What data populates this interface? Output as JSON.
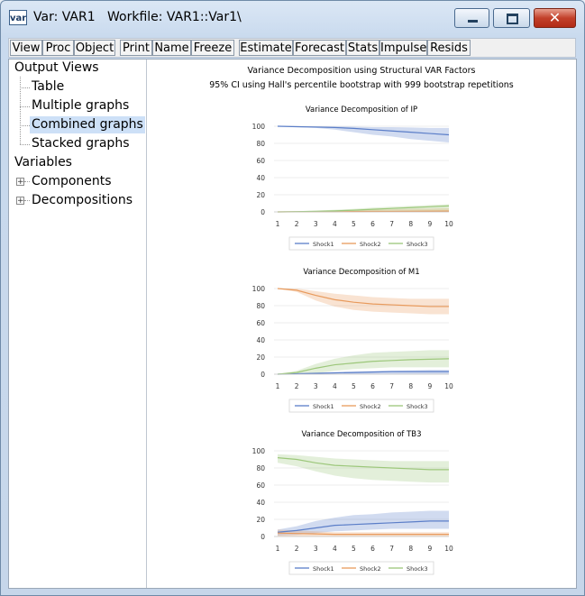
{
  "window": {
    "icon_label": "var",
    "title": "Var: VAR1   Workfile: VAR1::Var1\\",
    "close_glyph": "✕"
  },
  "toolbar": [
    "View",
    "Proc",
    "Object",
    "Print",
    "Name",
    "Freeze",
    "Estimate",
    "Forecast",
    "Stats",
    "Impulse",
    "Resids"
  ],
  "tree": {
    "output_views": "Output Views",
    "table": "Table",
    "multiple_graphs": "Multiple graphs",
    "combined_graphs": "Combined graphs",
    "stacked_graphs": "Stacked graphs",
    "variables": "Variables",
    "components": "Components",
    "decompositions": "Decompositions",
    "expand_glyph": "+"
  },
  "figure": {
    "title": "Variance Decomposition using Structural VAR Factors",
    "subtitle": "95% CI using Hall's percentile bootstrap with 999 bootstrap repetitions"
  },
  "colors": {
    "shock1": "#5b7ec8",
    "shock2": "#e89a5c",
    "shock3": "#9cc77a"
  },
  "chart_data": [
    {
      "type": "line",
      "title": "Variance Decomposition of IP",
      "x": [
        1,
        2,
        3,
        4,
        5,
        6,
        7,
        8,
        9,
        10
      ],
      "ylim": [
        0,
        100
      ],
      "yticks": [
        0,
        20,
        40,
        60,
        80,
        100
      ],
      "legend_placement": "bottom",
      "series": [
        {
          "name": "Shock1",
          "values": [
            100,
            99.5,
            99,
            98.5,
            97.5,
            96,
            94.5,
            93,
            91.5,
            90
          ],
          "lower": [
            100,
            99,
            98,
            96,
            93,
            90,
            88,
            85,
            83,
            81
          ],
          "upper": [
            100,
            100,
            100,
            100,
            99.5,
            99,
            99,
            98.5,
            98,
            98
          ]
        },
        {
          "name": "Shock2",
          "values": [
            0,
            0.1,
            0.2,
            0.3,
            0.4,
            0.5,
            0.6,
            0.7,
            0.8,
            0.9
          ],
          "lower": [
            0,
            0,
            0,
            0,
            0,
            0,
            0,
            0,
            0,
            0
          ],
          "upper": [
            0,
            0.5,
            1,
            1.5,
            2,
            2.5,
            3,
            3.5,
            4,
            4.5
          ]
        },
        {
          "name": "Shock3",
          "values": [
            0,
            0.3,
            0.7,
            1.2,
            2,
            3,
            4,
            5,
            6,
            7
          ],
          "lower": [
            0,
            0,
            0,
            0,
            0,
            0,
            0,
            0,
            0,
            0
          ],
          "upper": [
            0,
            0.8,
            1.5,
            2.5,
            3.5,
            5,
            6,
            7,
            8,
            9
          ]
        }
      ]
    },
    {
      "type": "line",
      "title": "Variance Decomposition of M1",
      "x": [
        1,
        2,
        3,
        4,
        5,
        6,
        7,
        8,
        9,
        10
      ],
      "ylim": [
        0,
        100
      ],
      "yticks": [
        0,
        20,
        40,
        60,
        80,
        100
      ],
      "legend_placement": "bottom",
      "series": [
        {
          "name": "Shock1",
          "values": [
            0,
            0.5,
            1,
            1.5,
            2,
            2.5,
            3,
            3,
            3,
            3
          ],
          "lower": [
            0,
            0,
            0,
            0,
            0,
            0,
            0,
            0,
            0,
            0
          ],
          "upper": [
            0,
            1,
            2,
            2.5,
            3,
            3.5,
            4,
            4.5,
            5,
            5
          ]
        },
        {
          "name": "Shock2",
          "values": [
            100,
            98,
            92,
            87,
            84,
            82,
            81,
            80,
            79,
            79
          ],
          "lower": [
            100,
            96,
            86,
            79,
            75,
            73,
            72,
            71,
            70,
            70
          ],
          "upper": [
            100,
            100,
            97,
            94,
            92,
            90,
            89,
            88,
            88,
            88
          ]
        },
        {
          "name": "Shock3",
          "values": [
            0,
            2,
            7,
            11,
            13,
            15,
            16,
            17,
            17.5,
            18
          ],
          "lower": [
            0,
            0,
            1,
            4,
            6,
            7,
            8,
            8,
            8,
            8
          ],
          "upper": [
            0,
            4,
            12,
            18,
            22,
            25,
            26,
            27,
            28,
            28
          ]
        }
      ]
    },
    {
      "type": "line",
      "title": "Variance Decomposition of TB3",
      "x": [
        1,
        2,
        3,
        4,
        5,
        6,
        7,
        8,
        9,
        10
      ],
      "ylim": [
        0,
        100
      ],
      "yticks": [
        0,
        20,
        40,
        60,
        80,
        100
      ],
      "legend_placement": "bottom",
      "series": [
        {
          "name": "Shock1",
          "values": [
            5,
            7,
            10,
            13,
            14,
            15,
            16,
            17,
            18,
            18
          ],
          "lower": [
            1,
            2,
            4,
            6,
            7,
            8,
            9,
            9,
            9,
            9
          ],
          "upper": [
            8,
            12,
            18,
            22,
            25,
            26,
            28,
            29,
            30,
            30
          ]
        },
        {
          "name": "Shock2",
          "values": [
            4,
            3.5,
            3,
            2.5,
            2.5,
            2.5,
            2.5,
            2.5,
            2.5,
            2.5
          ],
          "lower": [
            0,
            0,
            0,
            0,
            0,
            0,
            0,
            0,
            0,
            0
          ],
          "upper": [
            8,
            7,
            6,
            5,
            5,
            5,
            5,
            5,
            5,
            5
          ]
        },
        {
          "name": "Shock3",
          "values": [
            92,
            90,
            86,
            83,
            82,
            81,
            80,
            79,
            78,
            78
          ],
          "lower": [
            86,
            82,
            76,
            71,
            68,
            66,
            65,
            64,
            63,
            63
          ],
          "upper": [
            96,
            95,
            93,
            91,
            90,
            89,
            88,
            88,
            88,
            88
          ]
        }
      ]
    }
  ]
}
